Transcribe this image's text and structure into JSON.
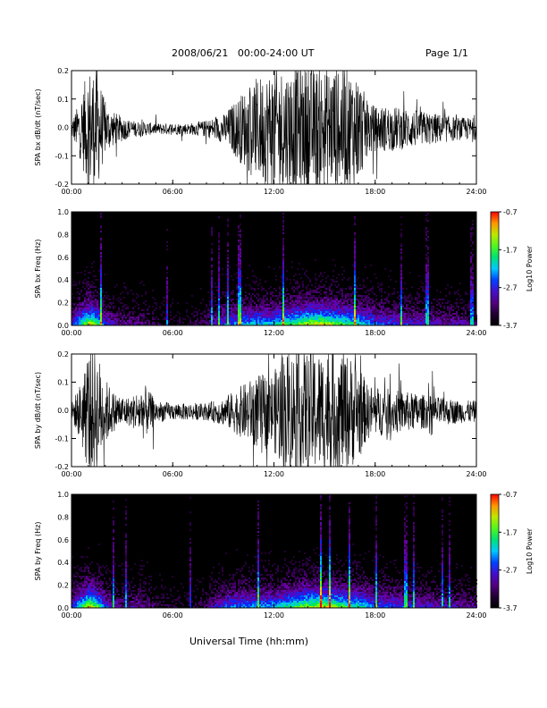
{
  "header": {
    "title": "2008/06/21   00:00-24:00 UT",
    "page": "Page 1/1"
  },
  "footer": {
    "x_axis_title": "Universal Time (hh:mm)"
  },
  "chart_data": [
    {
      "type": "line",
      "title": "",
      "ylabel": "SPA bx dB/dt (nT/sec)",
      "xlabel": "",
      "x_ticks": [
        "00:00",
        "06:00",
        "12:00",
        "18:00",
        "24:00"
      ],
      "y_ticks": [
        "0.2",
        "0.1",
        "0.0",
        "-0.1",
        "-0.2"
      ],
      "xlim": [
        0,
        24
      ],
      "ylim": [
        -0.2,
        0.2
      ],
      "amplitude_envelope": {
        "hours": [
          0,
          0.5,
          1.0,
          1.5,
          2.0,
          2.5,
          3.5,
          5,
          6,
          7,
          8,
          9,
          10,
          11,
          12,
          13,
          14,
          15,
          16,
          17,
          17.5,
          18,
          19,
          20,
          21,
          22,
          23,
          24
        ],
        "values": [
          0.03,
          0.1,
          0.22,
          0.22,
          0.09,
          0.06,
          0.03,
          0.02,
          0.02,
          0.02,
          0.03,
          0.05,
          0.12,
          0.18,
          0.22,
          0.22,
          0.22,
          0.22,
          0.22,
          0.2,
          0.1,
          0.08,
          0.08,
          0.07,
          0.06,
          0.05,
          0.04,
          0.04
        ]
      }
    },
    {
      "type": "heatmap",
      "title": "",
      "ylabel": "SPA bx Freq (Hz)",
      "xlabel": "",
      "x_ticks": [
        "00:00",
        "06:00",
        "12:00",
        "18:00",
        "24:00"
      ],
      "y_ticks": [
        "1.0",
        "0.8",
        "0.6",
        "0.4",
        "0.2",
        "0.0"
      ],
      "xlim": [
        0,
        24
      ],
      "ylim": [
        0,
        1.0
      ],
      "colorbar": {
        "label": "Log10 Power",
        "ticks": [
          "-0.7",
          "-1.7",
          "-2.7",
          "-3.7"
        ],
        "range": [
          -3.7,
          -0.7
        ]
      },
      "activity": {
        "hours": [
          0,
          0.5,
          1.0,
          1.5,
          2,
          3,
          4,
          5,
          6,
          7,
          8,
          9,
          10,
          11,
          12,
          13,
          14,
          15,
          16,
          17,
          18,
          19,
          20,
          21,
          22,
          23,
          24
        ],
        "values": [
          0.4,
          0.7,
          1.0,
          0.8,
          0.4,
          0.25,
          0.25,
          0.15,
          0.1,
          0.1,
          0.2,
          0.45,
          0.6,
          0.6,
          0.65,
          0.8,
          0.95,
          0.95,
          0.8,
          0.7,
          0.5,
          0.45,
          0.4,
          0.35,
          0.3,
          0.3,
          0.25
        ]
      }
    },
    {
      "type": "line",
      "title": "",
      "ylabel": "SPA by dB/dt (nT/sec)",
      "xlabel": "",
      "x_ticks": [
        "00:00",
        "06:00",
        "12:00",
        "18:00",
        "24:00"
      ],
      "y_ticks": [
        "0.2",
        "0.1",
        "0.0",
        "-0.1",
        "-0.2"
      ],
      "xlim": [
        0,
        24
      ],
      "ylim": [
        -0.2,
        0.2
      ],
      "amplitude_envelope": {
        "hours": [
          0,
          0.5,
          1.0,
          1.5,
          2.0,
          2.5,
          3.5,
          4.3,
          5,
          6,
          7,
          8,
          9,
          10,
          11,
          12,
          12.5,
          13,
          14,
          15,
          16,
          17,
          17.5,
          18,
          19,
          20,
          21,
          22,
          23,
          24
        ],
        "values": [
          0.03,
          0.1,
          0.22,
          0.22,
          0.12,
          0.07,
          0.05,
          0.1,
          0.04,
          0.03,
          0.03,
          0.03,
          0.05,
          0.09,
          0.13,
          0.14,
          0.22,
          0.22,
          0.22,
          0.22,
          0.22,
          0.18,
          0.1,
          0.09,
          0.08,
          0.07,
          0.06,
          0.05,
          0.04,
          0.04
        ]
      }
    },
    {
      "type": "heatmap",
      "title": "",
      "ylabel": "SPA by Freq (Hz)",
      "xlabel": "",
      "x_ticks": [
        "00:00",
        "06:00",
        "12:00",
        "18:00",
        "24:00"
      ],
      "y_ticks": [
        "1.0",
        "0.8",
        "0.6",
        "0.4",
        "0.2",
        "0.0"
      ],
      "xlim": [
        0,
        24
      ],
      "ylim": [
        0,
        1.0
      ],
      "colorbar": {
        "label": "Log10 Power",
        "ticks": [
          "-0.7",
          "-1.7",
          "-2.7",
          "-3.7"
        ],
        "range": [
          -3.7,
          -0.7
        ]
      },
      "activity": {
        "hours": [
          0,
          0.5,
          1.0,
          1.5,
          2,
          3,
          4,
          5,
          6,
          7,
          8,
          9,
          10,
          11,
          12,
          13,
          14,
          15,
          16,
          17,
          18,
          19,
          20,
          21,
          22,
          23,
          24
        ],
        "values": [
          0.4,
          0.7,
          1.0,
          0.8,
          0.4,
          0.25,
          0.3,
          0.15,
          0.1,
          0.1,
          0.2,
          0.45,
          0.55,
          0.55,
          0.6,
          0.75,
          0.9,
          0.95,
          0.8,
          0.7,
          0.5,
          0.45,
          0.4,
          0.35,
          0.3,
          0.3,
          0.25
        ]
      }
    }
  ]
}
